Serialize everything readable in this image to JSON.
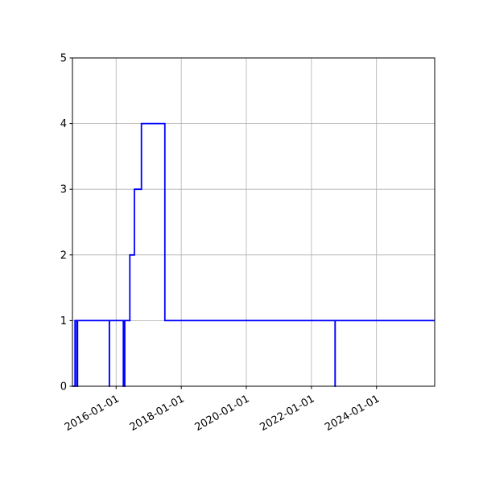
{
  "chart_data": {
    "type": "line",
    "step": "post",
    "title": "",
    "xlabel": "",
    "ylabel": "",
    "xlim": [
      "2014-08-29",
      "2025-10-15"
    ],
    "ylim": [
      0,
      5
    ],
    "grid": true,
    "line_color": "#0000ff",
    "grid_color": "#b0b0b0",
    "x_ticks": [
      "2016-01-01",
      "2018-01-01",
      "2020-01-01",
      "2022-01-01",
      "2024-01-01"
    ],
    "y_ticks": [
      "0",
      "1",
      "2",
      "3",
      "4",
      "5"
    ],
    "series": [
      {
        "points": [
          [
            "2014-08-29",
            0
          ],
          [
            "2014-09-27",
            1
          ],
          [
            "2014-10-16",
            0
          ],
          [
            "2014-10-25",
            1
          ],
          [
            "2015-10-17",
            0
          ],
          [
            "2015-10-18",
            1
          ],
          [
            "2016-03-22",
            0
          ],
          [
            "2016-04-07",
            1
          ],
          [
            "2016-06-03",
            2
          ],
          [
            "2016-07-24",
            3
          ],
          [
            "2016-10-11",
            4
          ],
          [
            "2017-07-01",
            1
          ],
          [
            "2022-09-23",
            0
          ],
          [
            "2022-09-24",
            1
          ],
          [
            "2025-10-15",
            1
          ]
        ]
      }
    ]
  }
}
